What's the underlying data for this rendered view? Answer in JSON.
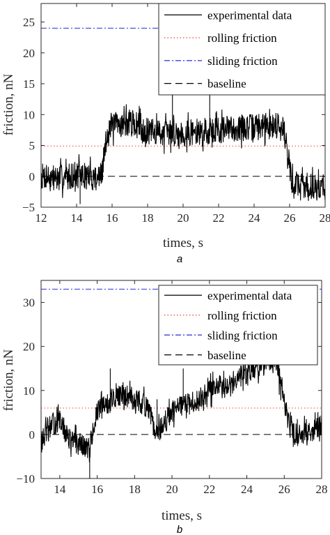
{
  "chart_data": [
    {
      "type": "line",
      "panel_label": "a",
      "xlabel": "times, s",
      "ylabel": "friction, nN",
      "xlim": [
        12,
        28
      ],
      "ylim": [
        -5,
        28
      ],
      "xticks": [
        12,
        14,
        16,
        18,
        20,
        22,
        24,
        26,
        28
      ],
      "yticks": [
        -5,
        0,
        5,
        10,
        15,
        20,
        25
      ],
      "legend_position": "top-right",
      "reference_lines": [
        {
          "name": "rolling friction",
          "y": 4.9,
          "style": "dotted",
          "color": "#e8403a"
        },
        {
          "name": "sliding friction",
          "y": 24,
          "style": "dashdot",
          "color": "#2b2bd6"
        },
        {
          "name": "baseline",
          "y": 0,
          "style": "dashed",
          "color": "#000000"
        }
      ],
      "series": [
        {
          "name": "experimental data",
          "color": "#000000",
          "x": [
            12.0,
            13.0,
            14.0,
            15.0,
            15.4,
            15.6,
            15.8,
            16.5,
            17.0,
            17.5,
            18.0,
            19.0,
            20.0,
            21.0,
            22.0,
            23.0,
            24.0,
            25.0,
            25.6,
            25.9,
            26.1,
            26.5,
            27.0,
            27.5,
            28.0
          ],
          "values": [
            0,
            -0.3,
            0.3,
            -0.2,
            0,
            4.5,
            8,
            8.5,
            8.7,
            8.2,
            7.2,
            7.1,
            7.0,
            7.2,
            7.6,
            7.8,
            8.0,
            8.2,
            8.5,
            4,
            -1,
            -1.2,
            -1.6,
            -1.8,
            -1.5
          ]
        }
      ],
      "spikes": [
        {
          "x": 19.4,
          "y": 15
        },
        {
          "x": 21.5,
          "y": 15
        },
        {
          "x": 14.2,
          "y": -4.5
        }
      ]
    },
    {
      "type": "line",
      "panel_label": "b",
      "xlabel": "times, s",
      "ylabel": "friction, nN",
      "xlim": [
        13,
        28
      ],
      "ylim": [
        -10,
        35
      ],
      "xticks": [
        14,
        16,
        18,
        20,
        22,
        24,
        26,
        28
      ],
      "yticks": [
        -10,
        0,
        10,
        20,
        30
      ],
      "legend_position": "top-right",
      "reference_lines": [
        {
          "name": "rolling friction",
          "y": 6,
          "style": "dotted",
          "color": "#e8403a"
        },
        {
          "name": "sliding friction",
          "y": 33,
          "style": "dashdot",
          "color": "#2b2bd6"
        },
        {
          "name": "baseline",
          "y": 0,
          "style": "dashed",
          "color": "#000000"
        }
      ],
      "series": [
        {
          "name": "experimental data",
          "color": "#000000",
          "x": [
            13.0,
            13.5,
            14.0,
            14.5,
            15.0,
            15.4,
            15.6,
            16.0,
            16.5,
            17.0,
            17.5,
            18.0,
            18.5,
            18.9,
            19.1,
            19.5,
            20.0,
            20.5,
            21.0,
            21.5,
            22.0,
            22.5,
            23.0,
            23.5,
            24.0,
            24.5,
            25.0,
            25.5,
            25.8,
            26.2,
            26.5,
            27.0,
            27.5,
            28.0
          ],
          "values": [
            -2,
            2,
            3,
            -1,
            -2,
            -3,
            -3,
            5,
            7,
            8.5,
            9,
            8,
            7,
            4,
            -0.5,
            2,
            5,
            6.5,
            7,
            8,
            10,
            11,
            12,
            13,
            14,
            15.5,
            16,
            16.5,
            12,
            3,
            0,
            0.5,
            1,
            2
          ]
        }
      ],
      "spikes": [
        {
          "x": 15.6,
          "y": -10
        },
        {
          "x": 16.7,
          "y": 15
        },
        {
          "x": 19.2,
          "y": 8
        },
        {
          "x": 20.6,
          "y": 15
        },
        {
          "x": 23.6,
          "y": 15
        }
      ]
    }
  ]
}
